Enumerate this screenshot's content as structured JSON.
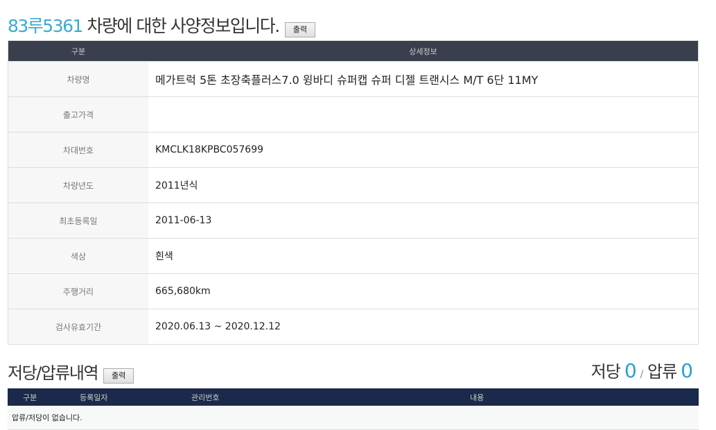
{
  "header": {
    "plate": "83루5361",
    "title_suffix": " 차량에 대한 사양정보입니다.",
    "print_label": "출력"
  },
  "spec": {
    "columns": [
      "구분",
      "상세정보"
    ],
    "rows": [
      {
        "label": "차량명",
        "value": "메가트럭 5톤 초장축플러스7.0 윙바디 슈퍼캡 슈퍼 디젤 트랜시스 M/T 6단 11MY"
      },
      {
        "label": "출고가격",
        "value": ""
      },
      {
        "label": "차대번호",
        "value": "KMCLK18KPBC057699"
      },
      {
        "label": "차량년도",
        "value": "2011년식"
      },
      {
        "label": "최초등록일",
        "value": "2011-06-13"
      },
      {
        "label": "색상",
        "value": "흰색"
      },
      {
        "label": "주행거리",
        "value": "665,680km"
      },
      {
        "label": "검사유효기간",
        "value": "2020.06.13 ~ 2020.12.12"
      }
    ]
  },
  "lien": {
    "title": "저당/압류내역",
    "print_label": "출력",
    "mortgage_label": "저당",
    "mortgage_count": "0",
    "separator": "/",
    "seizure_label": "압류",
    "seizure_count": "0",
    "columns": [
      "구분",
      "등록일자",
      "관리번호",
      "내용"
    ],
    "empty_message": "압류/저당이 없습니다."
  },
  "colors": {
    "accent": "#3aa9d4",
    "spec_header": "#3a3f4d",
    "lien_header": "#1b2a4a"
  }
}
